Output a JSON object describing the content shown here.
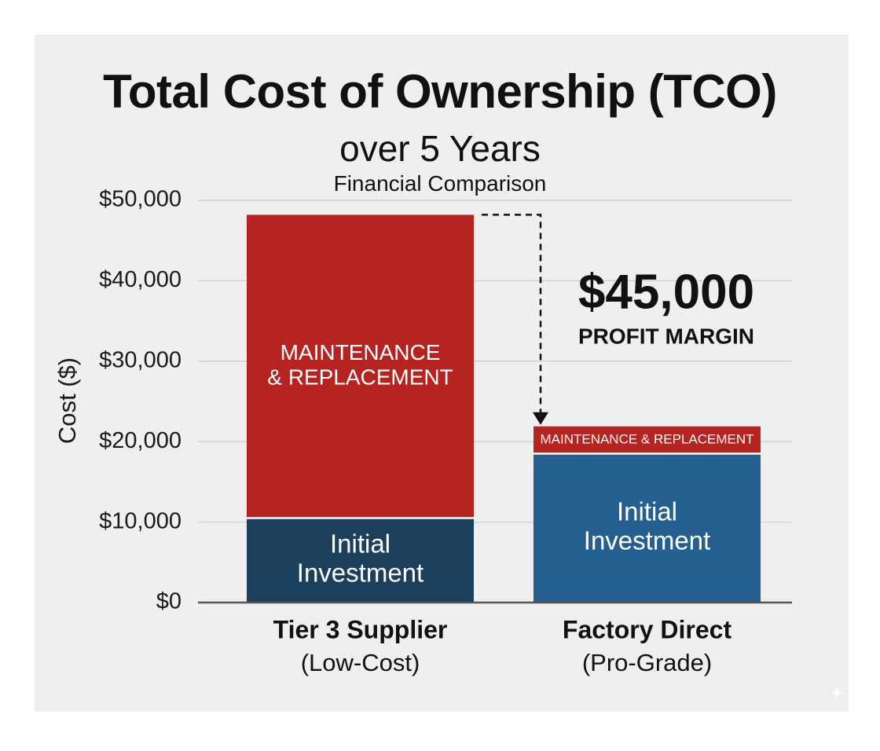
{
  "chart_data": {
    "type": "bar",
    "stacked": true,
    "title": "Total Cost of Ownership (TCO)",
    "subtitle": "over 5 Years",
    "subtitle2": "Financial Comparison",
    "xlabel": "",
    "ylabel": "Cost ($)",
    "ylim": [
      0,
      50000
    ],
    "yticks": [
      0,
      10000,
      20000,
      30000,
      40000,
      50000
    ],
    "ytick_labels": [
      "$0",
      "$10,000",
      "$20,000",
      "$30,000",
      "$40,000",
      "$50,000"
    ],
    "grid": true,
    "categories": [
      {
        "name": "Tier 3 Supplier",
        "sub": "(Low-Cost)"
      },
      {
        "name": "Factory Direct",
        "sub": "(Pro-Grade)"
      }
    ],
    "series": [
      {
        "name": "Initial Investment",
        "label_lines": [
          "Initial",
          "Investment"
        ],
        "values": [
          10500,
          18500
        ],
        "colors": [
          "#1c3f5c",
          "#245f8f"
        ]
      },
      {
        "name": "Maintenance & Replacement",
        "label_lines_by_category": [
          [
            "MAINTENANCE",
            "& REPLACEMENT"
          ],
          [
            "MAINTENANCE & REPLACEMENT"
          ]
        ],
        "values": [
          37700,
          3400
        ],
        "colors": [
          "#b52421",
          "#b52421"
        ]
      }
    ],
    "annotation": {
      "value": "$45,000",
      "label": "PROFIT MARGIN",
      "arrow_from_total": 48200,
      "arrow_to_total": 21900
    }
  }
}
